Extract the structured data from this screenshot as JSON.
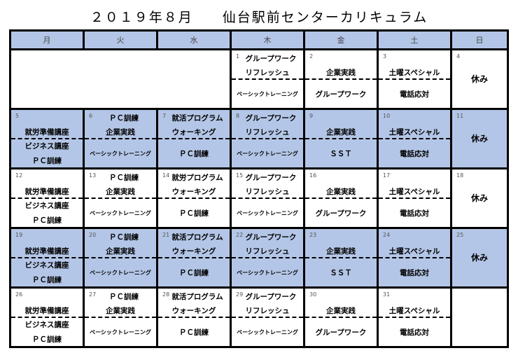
{
  "title": "２０１９年８月　　仙台駅前センターカリキュラム",
  "colors": {
    "header_bg": "#b4c6e7",
    "shaded_week_bg": "#b4c6e7"
  },
  "weekdays": [
    "月",
    "火",
    "水",
    "木",
    "金",
    "土",
    "日"
  ],
  "weeks": [
    {
      "shaded": false,
      "days": [
        {
          "empty": true
        },
        {
          "empty": true
        },
        {
          "empty": true
        },
        {
          "date": "1",
          "l1": "グループワーク",
          "l2": "リフレッシュ",
          "bottom": [
            "ベーシックトレーニング"
          ],
          "small": true
        },
        {
          "date": "2",
          "l1": "",
          "l2": "企業実践",
          "bottom": [
            "グループワーク"
          ]
        },
        {
          "date": "3",
          "l1": "",
          "l2": "土曜スペシャル",
          "bottom": [
            "電話応対"
          ]
        },
        {
          "date": "4",
          "sun": "休み"
        }
      ]
    },
    {
      "shaded": true,
      "days": [
        {
          "date": "5",
          "l1": "",
          "l2": "就労準備講座",
          "bottom": [
            "ビジネス講座",
            "ＰＣ訓練"
          ]
        },
        {
          "date": "6",
          "l1": "ＰＣ訓練",
          "l2": "企業実践",
          "bottom": [
            "ベーシックトレーニング"
          ],
          "small": true
        },
        {
          "date": "7",
          "l1": "就活プログラム",
          "l2": "ウォーキング",
          "bottom": [
            "ＰＣ訓練"
          ]
        },
        {
          "date": "8",
          "l1": "グループワーク",
          "l2": "リフレッシュ",
          "bottom": [
            "ベーシックトレーニング"
          ],
          "small": true
        },
        {
          "date": "9",
          "l1": "",
          "l2": "企業実践",
          "bottom": [
            "ＳＳＴ"
          ]
        },
        {
          "date": "10",
          "l1": "",
          "l2": "土曜スペシャル",
          "bottom": [
            "電話応対"
          ]
        },
        {
          "date": "11",
          "sun": "休み"
        }
      ]
    },
    {
      "shaded": false,
      "days": [
        {
          "date": "12",
          "l1": "",
          "l2": "就労準備講座",
          "bottom": [
            "ビジネス講座",
            "ＰＣ訓練"
          ]
        },
        {
          "date": "13",
          "l1": "ＰＣ訓練",
          "l2": "企業実践",
          "bottom": [
            "ベーシックトレーニング"
          ],
          "small": true
        },
        {
          "date": "14",
          "l1": "就労プログラム",
          "l2": "ウォーキング",
          "bottom": [
            "ＰＣ訓練"
          ]
        },
        {
          "date": "15",
          "l1": "グループワーク",
          "l2": "リフレッシュ",
          "bottom": [
            "ベーシックトレーニング"
          ],
          "small": true
        },
        {
          "date": "16",
          "l1": "",
          "l2": "企業実践",
          "bottom": [
            "グループワーク"
          ]
        },
        {
          "date": "17",
          "l1": "",
          "l2": "土曜スペシャル",
          "bottom": [
            "電話応対"
          ]
        },
        {
          "date": "18",
          "sun": "休み"
        }
      ]
    },
    {
      "shaded": true,
      "days": [
        {
          "date": "19",
          "l1": "",
          "l2": "就労準備講座",
          "bottom": [
            "ビジネス講座",
            "ＰＣ訓練"
          ]
        },
        {
          "date": "20",
          "l1": "ＰＣ訓練",
          "l2": "企業実践",
          "bottom": [
            "ベーシックトレーニング"
          ],
          "small": true
        },
        {
          "date": "21",
          "l1": "就活プログラム",
          "l2": "ウォーキング",
          "bottom": [
            "ＰＣ訓練"
          ]
        },
        {
          "date": "22",
          "l1": "グループワーク",
          "l2": "リフレッシュ",
          "bottom": [
            "ベーシックトレーニング"
          ],
          "small": true
        },
        {
          "date": "23",
          "l1": "",
          "l2": "企業実践",
          "bottom": [
            "ＳＳＴ"
          ]
        },
        {
          "date": "24",
          "l1": "",
          "l2": "土曜スペシャル",
          "bottom": [
            "電話応対"
          ]
        },
        {
          "date": "25",
          "sun": "休み"
        }
      ]
    },
    {
      "shaded": false,
      "days": [
        {
          "date": "26",
          "l1": "",
          "l2": "就労準備講座",
          "bottom": [
            "ビジネス講座",
            "ＰＣ訓練"
          ]
        },
        {
          "date": "27",
          "l1": "ＰＣ訓練",
          "l2": "企業実践",
          "bottom": [
            "ベーシックトレーニング"
          ],
          "small": true
        },
        {
          "date": "28",
          "l1": "就活プログラム",
          "l2": "ウォーキング",
          "bottom": [
            "ＰＣ訓練"
          ]
        },
        {
          "date": "29",
          "l1": "グループワーク",
          "l2": "リフレッシュ",
          "bottom": [
            "ベーシックトレーニング"
          ],
          "small": true
        },
        {
          "date": "30",
          "l1": "",
          "l2": "企業実践",
          "bottom": [
            "グループワーク"
          ]
        },
        {
          "date": "31",
          "l1": "",
          "l2": "土曜スペシャル",
          "bottom": [
            "電話応対"
          ]
        },
        {
          "empty": true
        }
      ]
    }
  ]
}
